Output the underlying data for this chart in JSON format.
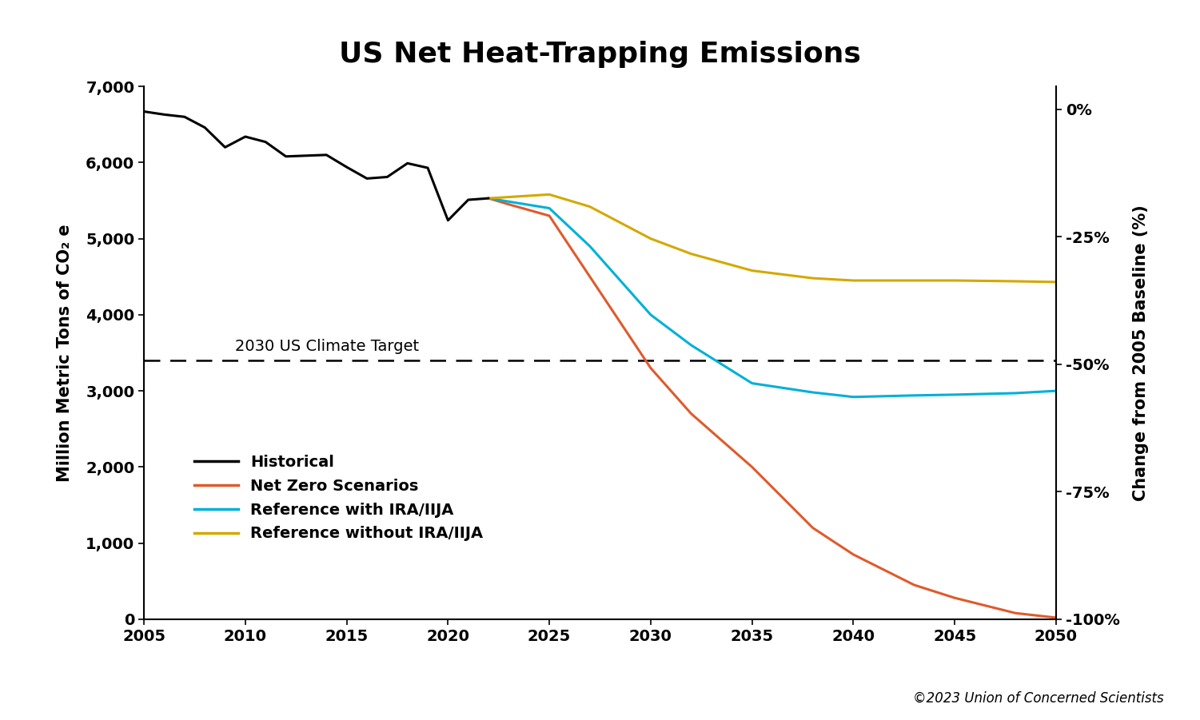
{
  "title": "US Net Heat-Trapping Emissions",
  "ylabel_left": "Million Metric Tons of CO₂ e",
  "ylabel_right": "Change from 2005 Baseline (%)",
  "copyright": "©2023 Union of Concerned Scientists",
  "target_label": "2030 US Climate Target",
  "target_value": 3400,
  "ylim": [
    0,
    7000
  ],
  "xlim": [
    2005,
    2050
  ],
  "xticks": [
    2005,
    2010,
    2015,
    2020,
    2025,
    2030,
    2035,
    2040,
    2045,
    2050
  ],
  "yticks_left": [
    0,
    1000,
    2000,
    3000,
    4000,
    5000,
    6000,
    7000
  ],
  "baseline_2005": 6700,
  "right_axis_pct_ticks": [
    0,
    -25,
    -50,
    -75,
    -100
  ],
  "right_axis_labels": [
    "0%",
    "-25%",
    "-50%",
    "-75%",
    "-100%"
  ],
  "historical": {
    "x": [
      2005,
      2006,
      2007,
      2008,
      2009,
      2010,
      2011,
      2012,
      2013,
      2014,
      2015,
      2016,
      2017,
      2018,
      2019,
      2020,
      2021,
      2022
    ],
    "y": [
      6670,
      6630,
      6600,
      6460,
      6200,
      6340,
      6270,
      6080,
      6090,
      6100,
      5940,
      5790,
      5810,
      5990,
      5930,
      5240,
      5510,
      5530
    ],
    "color": "#000000",
    "label": "Historical",
    "linewidth": 2.2
  },
  "net_zero": {
    "x": [
      2022,
      2023,
      2025,
      2027,
      2030,
      2032,
      2035,
      2038,
      2040,
      2043,
      2045,
      2048,
      2050
    ],
    "y": [
      5530,
      5450,
      5300,
      4500,
      3300,
      2700,
      2000,
      1200,
      850,
      450,
      280,
      80,
      20
    ],
    "color": "#e05a2b",
    "label": "Net Zero Scenarios",
    "linewidth": 2.2
  },
  "with_ira": {
    "x": [
      2022,
      2025,
      2027,
      2030,
      2032,
      2035,
      2038,
      2040,
      2043,
      2045,
      2048,
      2050
    ],
    "y": [
      5530,
      5400,
      4900,
      4000,
      3600,
      3100,
      2980,
      2920,
      2940,
      2950,
      2970,
      3000
    ],
    "color": "#00b0d8",
    "label": "Reference with IRA/IIJA",
    "linewidth": 2.2
  },
  "without_ira": {
    "x": [
      2022,
      2025,
      2027,
      2030,
      2032,
      2035,
      2038,
      2040,
      2043,
      2045,
      2048,
      2050
    ],
    "y": [
      5530,
      5580,
      5420,
      5000,
      4800,
      4580,
      4480,
      4450,
      4450,
      4450,
      4440,
      4430
    ],
    "color": "#d4a800",
    "label": "Reference without IRA/IIJA",
    "linewidth": 2.2
  },
  "background_color": "#ffffff",
  "title_fontsize": 26,
  "axis_label_fontsize": 15,
  "tick_fontsize": 14,
  "legend_fontsize": 14,
  "copyright_fontsize": 12
}
